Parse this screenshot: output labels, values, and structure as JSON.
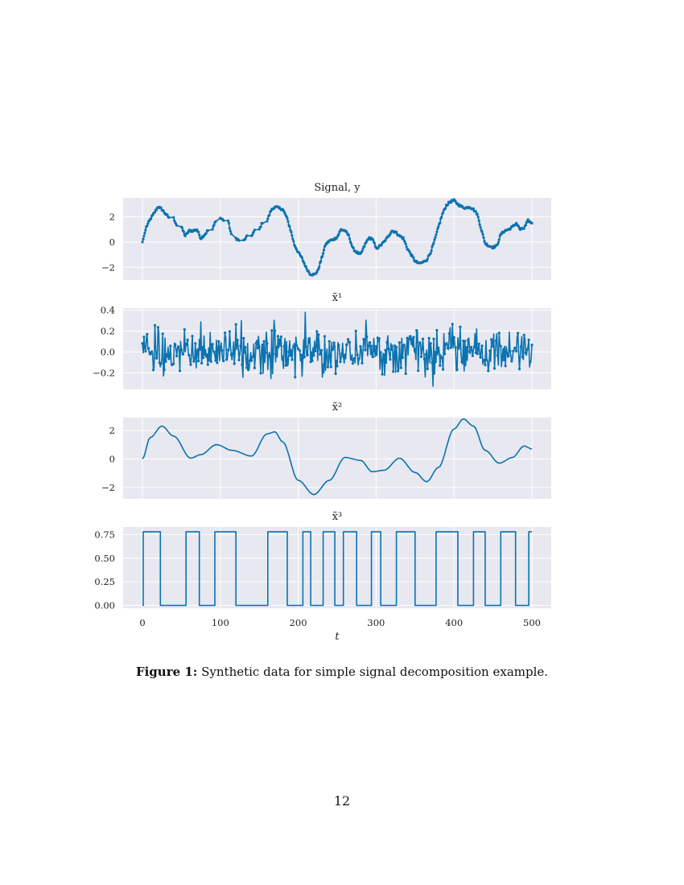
{
  "chart_data": [
    {
      "type": "line",
      "title": "Signal, y",
      "markers": true,
      "xlim": [
        0,
        500
      ],
      "ylim": [
        -3.0,
        3.5
      ],
      "yticks": [
        2,
        0,
        -2
      ],
      "ytick_labels": [
        "2",
        "0",
        "−2"
      ],
      "grid": true,
      "description_points": {
        "t": [
          0,
          5,
          10,
          15,
          20,
          25,
          30,
          40,
          50,
          55,
          60,
          65,
          70,
          75,
          80,
          90,
          100,
          110,
          120,
          130,
          140,
          150,
          160,
          165,
          170,
          175,
          180,
          185,
          190,
          195,
          200,
          205,
          210,
          215,
          220,
          225,
          230,
          235,
          240,
          245,
          250,
          255,
          260,
          265,
          270,
          275,
          280,
          285,
          290,
          295,
          300,
          305,
          310,
          315,
          320,
          325,
          330,
          335,
          340,
          345,
          350,
          355,
          360,
          365,
          370,
          375,
          380,
          385,
          390,
          395,
          400,
          405,
          410,
          415,
          420,
          425,
          430,
          435,
          440,
          445,
          450,
          455,
          460,
          465,
          470,
          475,
          480,
          485,
          490,
          495,
          500
        ],
        "y": [
          0.0,
          1.2,
          1.8,
          2.3,
          2.8,
          2.6,
          2.2,
          1.9,
          1.2,
          0.5,
          0.9,
          0.9,
          1.0,
          0.3,
          0.6,
          1.0,
          1.9,
          1.7,
          0.3,
          0.1,
          0.5,
          1.0,
          1.7,
          2.5,
          2.8,
          2.7,
          2.6,
          2.0,
          1.0,
          -0.2,
          -0.8,
          -1.3,
          -2.0,
          -2.5,
          -2.6,
          -2.3,
          -1.3,
          -0.2,
          0.1,
          0.2,
          0.4,
          1.0,
          0.9,
          0.5,
          -0.5,
          -0.8,
          -1.0,
          -0.3,
          0.3,
          0.3,
          -0.5,
          -0.3,
          0.0,
          0.4,
          0.9,
          0.8,
          0.5,
          0.3,
          -0.5,
          -1.0,
          -1.5,
          -1.7,
          -1.6,
          -1.4,
          -0.8,
          0.1,
          1.2,
          2.2,
          2.9,
          3.2,
          3.3,
          3.0,
          2.8,
          2.7,
          2.8,
          2.6,
          2.2,
          1.0,
          -0.1,
          -0.3,
          -0.4,
          -0.3,
          0.6,
          0.9,
          1.0,
          1.2,
          1.5,
          1.0,
          1.1,
          1.7,
          1.5
        ]
      }
    },
    {
      "type": "line",
      "title": "x̃¹",
      "markers": true,
      "xlim": [
        0,
        500
      ],
      "ylim": [
        -0.36,
        0.42
      ],
      "yticks": [
        0.4,
        0.2,
        0.0,
        -0.2
      ],
      "ytick_labels": [
        "0.4",
        "0.2",
        "0.0",
        "−0.2"
      ],
      "grid": true,
      "noise": {
        "n": 500,
        "std": 0.1,
        "spike_t": 209,
        "spike_value": 0.38,
        "min_value": -0.33,
        "max_value": 0.38
      }
    },
    {
      "type": "line",
      "title": "x̃²",
      "markers": false,
      "xlim": [
        0,
        500
      ],
      "ylim": [
        -2.8,
        2.9
      ],
      "yticks": [
        2,
        0,
        -2
      ],
      "ytick_labels": [
        "2",
        "0",
        "−2"
      ],
      "grid": true,
      "points": {
        "t": [
          0,
          10,
          25,
          40,
          62,
          75,
          95,
          115,
          140,
          160,
          170,
          180,
          200,
          220,
          240,
          260,
          280,
          295,
          310,
          330,
          350,
          365,
          380,
          400,
          412,
          425,
          440,
          458,
          475,
          490,
          500
        ],
        "y": [
          0.0,
          1.5,
          2.3,
          1.6,
          0.05,
          0.3,
          1.0,
          0.6,
          0.2,
          1.75,
          1.9,
          1.2,
          -1.5,
          -2.5,
          -1.5,
          0.1,
          -0.1,
          -0.9,
          -0.8,
          0.05,
          -0.95,
          -1.6,
          -0.6,
          2.1,
          2.8,
          2.3,
          0.6,
          -0.3,
          0.1,
          0.9,
          0.7
        ]
      }
    },
    {
      "type": "line",
      "title": "x̃³",
      "step": true,
      "markers": false,
      "xlim": [
        0,
        500
      ],
      "ylim": [
        -0.03,
        0.83
      ],
      "yticks": [
        0.75,
        0.5,
        0.25,
        0.0
      ],
      "ytick_labels": [
        "0.75",
        "0.50",
        "0.25",
        "0.00"
      ],
      "xticks": [
        0,
        100,
        200,
        300,
        400,
        500
      ],
      "xtick_labels": [
        "0",
        "100",
        "200",
        "300",
        "400",
        "500"
      ],
      "xlabel": "t",
      "grid": true,
      "high_value": 0.78,
      "low_value": 0.0,
      "high_intervals": [
        [
          1,
          23
        ],
        [
          56,
          73
        ],
        [
          93,
          120
        ],
        [
          161,
          186
        ],
        [
          206,
          216
        ],
        [
          232,
          247
        ],
        [
          258,
          275
        ],
        [
          294,
          306
        ],
        [
          326,
          350
        ],
        [
          377,
          405
        ],
        [
          425,
          440
        ],
        [
          460,
          479
        ],
        [
          496,
          500
        ]
      ]
    }
  ],
  "caption": {
    "label": "Figure 1:",
    "text": "Synthetic data for simple signal decomposition example."
  },
  "page_number": "12",
  "colors": {
    "line": "#0b73b0",
    "plot_bg": "#e8e8f0",
    "grid": "#ffffff",
    "text": "#222222"
  }
}
